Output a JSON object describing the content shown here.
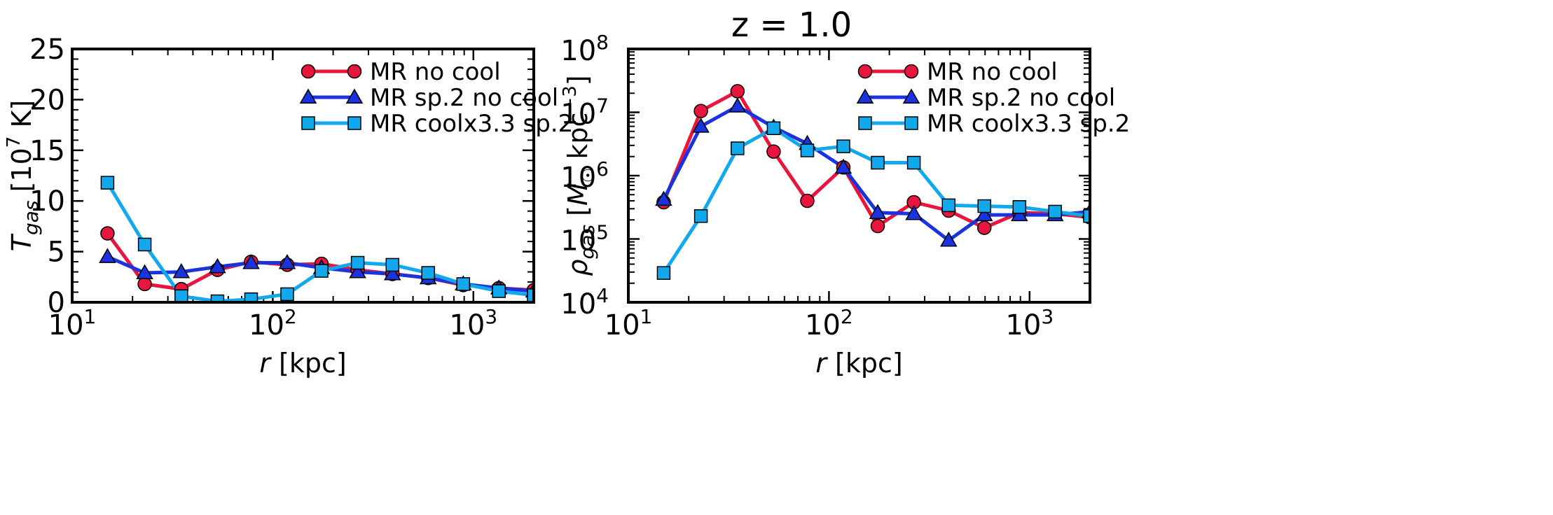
{
  "figure": {
    "title": "z = 1.0"
  },
  "chart_data": [
    {
      "type": "line",
      "xscale": "log",
      "yscale": "linear",
      "xlim": [
        10,
        2000
      ],
      "ylim": [
        0,
        25
      ],
      "xlabel": {
        "var": "r",
        "unit": " [kpc]"
      },
      "ylabel": {
        "var": "T",
        "sub": "gas",
        "pre_unit": " [10",
        "sup": "7",
        "post_unit": " K]"
      },
      "xticks": [
        {
          "value": 10,
          "base": "10",
          "exp": "1"
        },
        {
          "value": 100,
          "base": "10",
          "exp": "2"
        },
        {
          "value": 1000,
          "base": "10",
          "exp": "3"
        }
      ],
      "yticks": [
        {
          "value": 0,
          "label": "0"
        },
        {
          "value": 5,
          "label": "5"
        },
        {
          "value": 10,
          "label": "10"
        },
        {
          "value": 15,
          "label": "15"
        },
        {
          "value": 20,
          "label": "20"
        },
        {
          "value": 25,
          "label": "25"
        }
      ],
      "legend_position": "top-right",
      "series": [
        {
          "name": "MR no cool",
          "color": "#e8163c",
          "marker": "circle",
          "x": [
            15,
            23,
            35,
            53,
            78,
            118,
            175,
            265,
            395,
            595,
            890,
            1340,
            2000
          ],
          "y": [
            6.8,
            1.8,
            1.3,
            3.2,
            4.0,
            3.7,
            3.8,
            3.2,
            2.8,
            2.4,
            1.7,
            1.4,
            1.2
          ]
        },
        {
          "name": "MR sp.2 no cool",
          "color": "#1a33e0",
          "marker": "triangle",
          "x": [
            15,
            23,
            35,
            53,
            78,
            118,
            175,
            265,
            395,
            595,
            890,
            1340,
            2000
          ],
          "y": [
            4.5,
            2.9,
            3.0,
            3.5,
            3.9,
            3.9,
            3.4,
            3.0,
            2.8,
            2.4,
            1.8,
            1.4,
            1.1
          ]
        },
        {
          "name": "MR coolx3.3 sp.2",
          "color": "#12a8ee",
          "marker": "square",
          "x": [
            15,
            23,
            35,
            53,
            78,
            118,
            175,
            265,
            395,
            595,
            890,
            1340,
            2000
          ],
          "y": [
            11.8,
            5.7,
            0.6,
            0.1,
            0.3,
            0.8,
            3.1,
            3.9,
            3.7,
            2.9,
            1.8,
            1.1,
            0.7
          ]
        }
      ]
    },
    {
      "type": "line",
      "xscale": "log",
      "yscale": "log",
      "xlim": [
        10,
        2000
      ],
      "ylim": [
        10000,
        100000000
      ],
      "xlabel": {
        "var": "r",
        "unit": " [kpc]"
      },
      "ylabel": {
        "var": "ρ",
        "sub": "gas",
        "pre_unit": " [M",
        "msub": "☉",
        "mid_unit": " kpc",
        "sup": "−3",
        "post_unit": "]"
      },
      "xticks": [
        {
          "value": 10,
          "base": "10",
          "exp": "1"
        },
        {
          "value": 100,
          "base": "10",
          "exp": "2"
        },
        {
          "value": 1000,
          "base": "10",
          "exp": "3"
        }
      ],
      "yticks": [
        {
          "value": 10000,
          "base": "10",
          "exp": "4"
        },
        {
          "value": 100000,
          "base": "10",
          "exp": "5"
        },
        {
          "value": 1000000,
          "base": "10",
          "exp": "6"
        },
        {
          "value": 10000000,
          "base": "10",
          "exp": "7"
        },
        {
          "value": 100000000,
          "base": "10",
          "exp": "8"
        }
      ],
      "legend_position": "top-right",
      "series": [
        {
          "name": "MR no cool",
          "color": "#e8163c",
          "marker": "circle",
          "x": [
            15,
            23,
            35,
            53,
            78,
            118,
            175,
            265,
            395,
            595,
            890,
            1340,
            2000
          ],
          "y": [
            380000,
            10500000,
            21500000,
            2400000,
            400000,
            1350000,
            160000,
            380000,
            280000,
            150000,
            260000,
            250000,
            220000
          ]
        },
        {
          "name": "MR sp.2 no cool",
          "color": "#1a33e0",
          "marker": "triangle",
          "x": [
            15,
            23,
            35,
            53,
            78,
            118,
            175,
            265,
            395,
            595,
            890,
            1340,
            2000
          ],
          "y": [
            420000,
            6000000,
            12500000,
            5800000,
            3200000,
            1350000,
            260000,
            250000,
            95000,
            240000,
            240000,
            240000,
            270000
          ]
        },
        {
          "name": "MR coolx3.3 sp.2",
          "color": "#12a8ee",
          "marker": "square",
          "x": [
            15,
            23,
            35,
            53,
            78,
            118,
            175,
            265,
            395,
            595,
            890,
            1340,
            2000
          ],
          "y": [
            29000,
            230000,
            2700000,
            5600000,
            2500000,
            2900000,
            1600000,
            1600000,
            340000,
            330000,
            320000,
            270000,
            230000
          ]
        }
      ]
    }
  ]
}
